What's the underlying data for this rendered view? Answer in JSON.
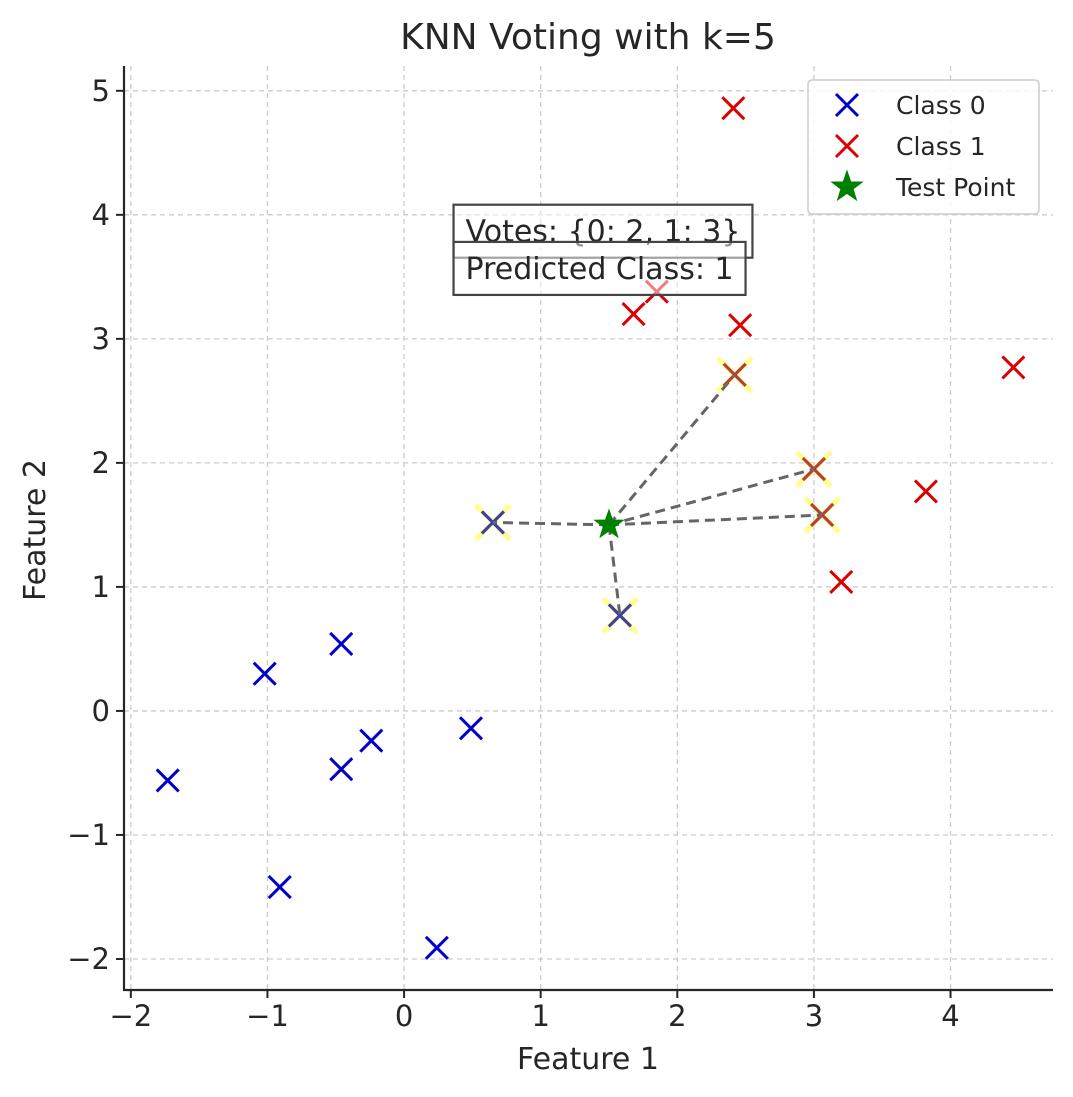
{
  "chart_data": {
    "type": "scatter",
    "title": "KNN Voting with k=5",
    "xlabel": "Feature 1",
    "ylabel": "Feature 2",
    "xlim": [
      -2.05,
      4.75
    ],
    "ylim": [
      -2.25,
      5.2
    ],
    "xticks": [
      -2,
      -1,
      0,
      1,
      2,
      3,
      4
    ],
    "yticks": [
      -2,
      -1,
      0,
      1,
      2,
      3,
      4,
      5
    ],
    "xtick_labels": [
      "−2",
      "−1",
      "0",
      "1",
      "2",
      "3",
      "4"
    ],
    "ytick_labels": [
      "−2",
      "−1",
      "0",
      "1",
      "2",
      "3",
      "4",
      "5"
    ],
    "grid": true,
    "legend_position": "top-right",
    "series": [
      {
        "name": "Class 0",
        "marker": "x",
        "color": "#0000cc",
        "points": [
          [
            -1.73,
            -0.56
          ],
          [
            -1.02,
            0.3
          ],
          [
            -0.46,
            0.54
          ],
          [
            -0.46,
            -0.47
          ],
          [
            -0.24,
            -0.24
          ],
          [
            -0.91,
            -1.42
          ],
          [
            0.49,
            -0.14
          ],
          [
            0.24,
            -1.91
          ],
          [
            0.65,
            1.52
          ],
          [
            1.58,
            0.77
          ]
        ]
      },
      {
        "name": "Class 1",
        "marker": "x",
        "color": "#dd0000",
        "points": [
          [
            2.41,
            4.86
          ],
          [
            1.85,
            3.38
          ],
          [
            1.68,
            3.2
          ],
          [
            2.46,
            3.11
          ],
          [
            4.46,
            2.77
          ],
          [
            3.82,
            1.77
          ],
          [
            3.2,
            1.04
          ],
          [
            2.42,
            2.71
          ],
          [
            3.0,
            1.95
          ],
          [
            3.06,
            1.58
          ]
        ]
      },
      {
        "name": "Test Point",
        "marker": "star",
        "color": "#008000",
        "points": [
          [
            1.5,
            1.5
          ]
        ]
      }
    ],
    "neighbors": [
      [
        0.65,
        1.52
      ],
      [
        1.58,
        0.77
      ],
      [
        2.42,
        2.71
      ],
      [
        3.0,
        1.95
      ],
      [
        3.06,
        1.58
      ]
    ],
    "neighbor_highlight_color": "#ffff66",
    "neighbor_line_color": "#555555",
    "annotations": [
      {
        "text": "Votes: {0: 2, 1: 3}",
        "x": 0.45,
        "y": 3.88
      },
      {
        "text": "Predicted Class: 1",
        "x": 0.45,
        "y": 3.58
      }
    ]
  }
}
